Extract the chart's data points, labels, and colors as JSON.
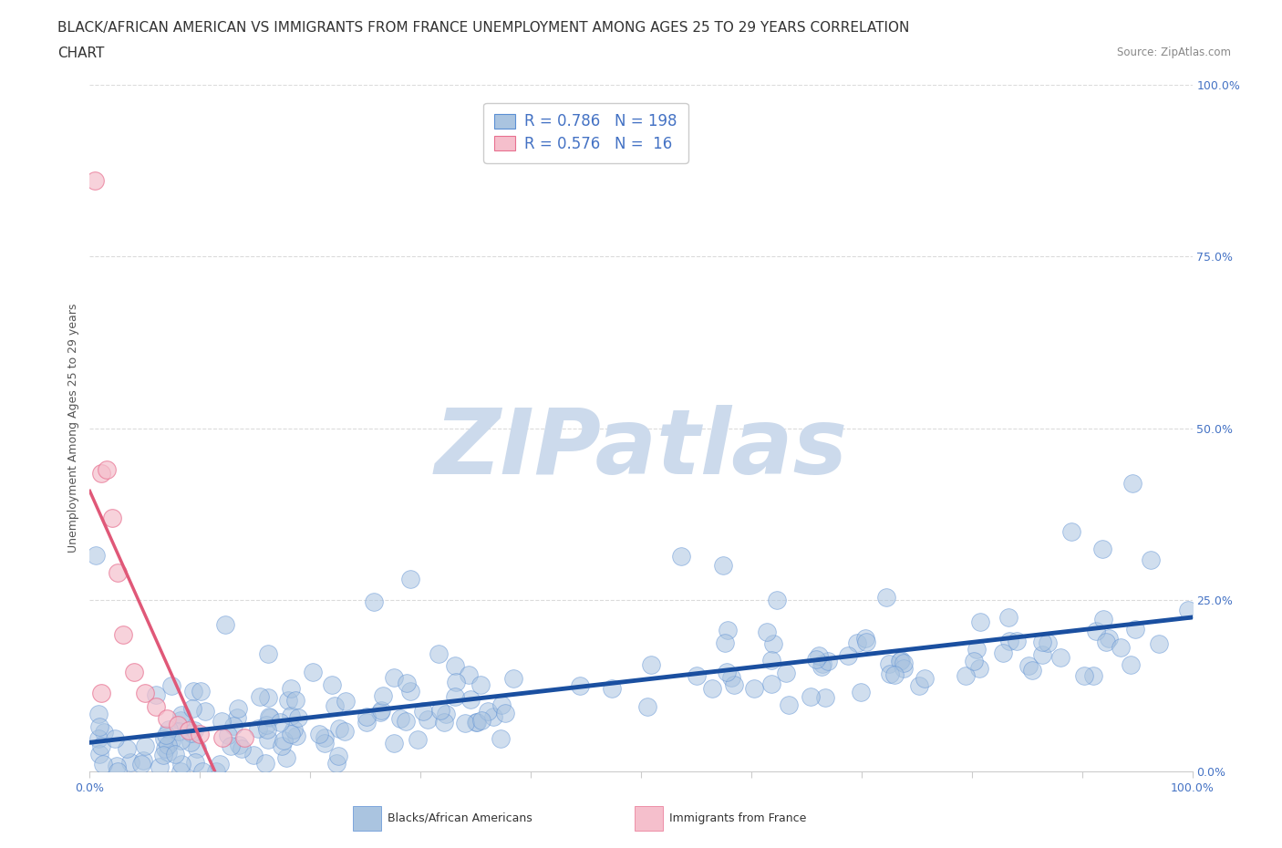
{
  "title_line1": "BLACK/AFRICAN AMERICAN VS IMMIGRANTS FROM FRANCE UNEMPLOYMENT AMONG AGES 25 TO 29 YEARS CORRELATION",
  "title_line2": "CHART",
  "source_text": "Source: ZipAtlas.com",
  "ylabel": "Unemployment Among Ages 25 to 29 years",
  "xmin": 0.0,
  "xmax": 1.0,
  "ymin": 0.0,
  "ymax": 1.0,
  "blue_R": 0.786,
  "blue_N": 198,
  "pink_R": 0.576,
  "pink_N": 16,
  "blue_color": "#aac4e0",
  "blue_edge_color": "#5b8fd4",
  "blue_line_color": "#1a4fa0",
  "pink_color": "#f5bfcc",
  "pink_edge_color": "#e87090",
  "pink_line_color": "#e05878",
  "legend_label_blue": "Blacks/African Americans",
  "legend_label_pink": "Immigrants from France",
  "watermark": "ZIPatlas",
  "watermark_color": "#ccdaec",
  "right_ytick_labels": [
    "0.0%",
    "25.0%",
    "50.0%",
    "75.0%",
    "100.0%"
  ],
  "right_ytick_values": [
    0.0,
    0.25,
    0.5,
    0.75,
    1.0
  ],
  "background_color": "#ffffff",
  "grid_color": "#d8d8d8",
  "title_fontsize": 11,
  "axis_label_fontsize": 9,
  "tick_fontsize": 9,
  "legend_R_N_color": "#4472c4",
  "legend_text_color": "#333333",
  "source_color": "#888888"
}
